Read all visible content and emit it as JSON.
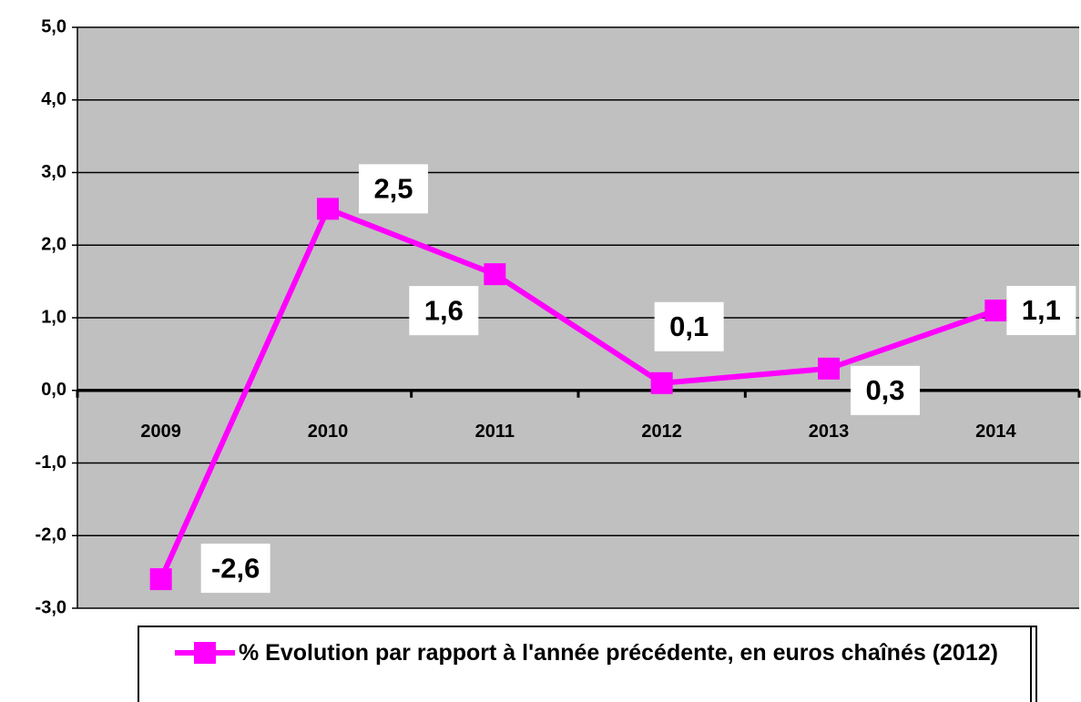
{
  "chart_data": {
    "type": "line",
    "categories": [
      "2009",
      "2010",
      "2011",
      "2012",
      "2013",
      "2014"
    ],
    "series": [
      {
        "name": "% Evolution par rapport à l'année précédente, en euros chaînés (2012)",
        "color": "#ff00ff",
        "values": [
          -2.6,
          2.5,
          1.6,
          0.1,
          0.3,
          1.1
        ],
        "value_labels": [
          "-2,6",
          "2,5",
          "1,6",
          "0,1",
          "0,3",
          "1,1"
        ]
      }
    ],
    "ylim": [
      -3,
      5
    ],
    "yticks": [
      {
        "value": -3,
        "label": "-3,0"
      },
      {
        "value": -2,
        "label": "-2,0"
      },
      {
        "value": -1,
        "label": "-1,0"
      },
      {
        "value": 0,
        "label": "0,0"
      },
      {
        "value": 1,
        "label": "1,0"
      },
      {
        "value": 2,
        "label": "2,0"
      },
      {
        "value": 3,
        "label": "3,0"
      },
      {
        "value": 4,
        "label": "4,0"
      },
      {
        "value": 5,
        "label": "5,0"
      }
    ],
    "grid": true,
    "legend": "bottom",
    "background": "#c0c0c0"
  }
}
